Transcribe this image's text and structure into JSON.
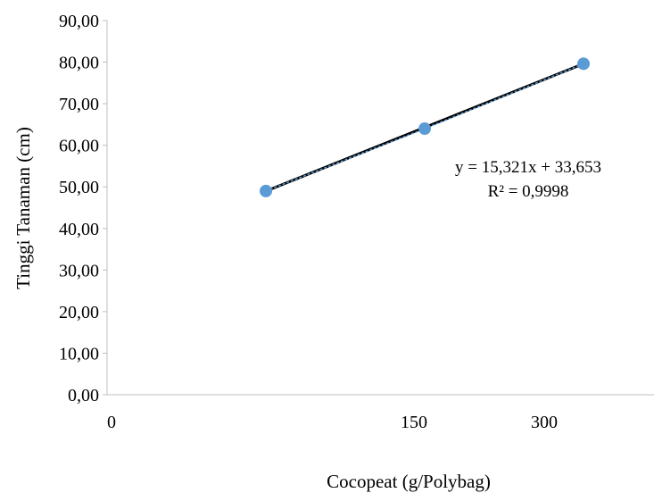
{
  "chart_data": {
    "type": "scatter",
    "title": "",
    "xlabel": "Cocopeat (g/Polybag)",
    "ylabel": "Tinggi Tanaman (cm)",
    "ylim": [
      0,
      90
    ],
    "y_ticks": [
      "0,00",
      "10,00",
      "20,00",
      "30,00",
      "40,00",
      "50,00",
      "60,00",
      "70,00",
      "80,00",
      "90,00"
    ],
    "categories": [
      "0",
      "150",
      "300"
    ],
    "x": [
      1,
      2,
      3
    ],
    "series": [
      {
        "values": [
          49.0,
          64.0,
          79.6
        ]
      }
    ],
    "trendline": {
      "type": "linear",
      "equation": "y = 15,321x + 33,653",
      "r_squared": "R² = 0,9998"
    },
    "grid": false,
    "legend": "none",
    "colors": {
      "marker": "#5b9bd5",
      "trendline": "#000000",
      "axis": "#bfbfbf"
    }
  }
}
